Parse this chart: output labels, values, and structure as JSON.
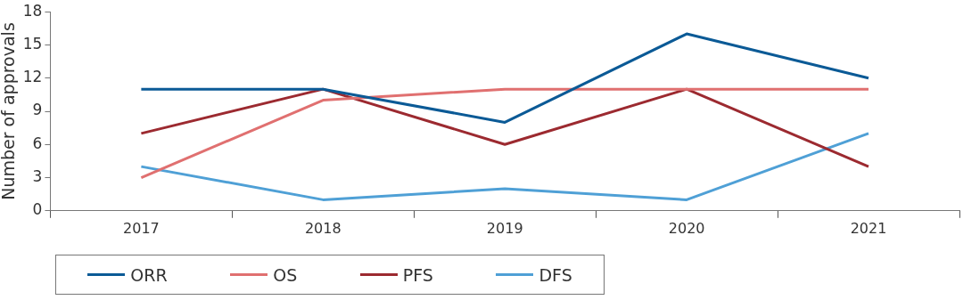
{
  "chart_data": {
    "type": "line",
    "ylabel": "Number of approvals",
    "categories": [
      "2017",
      "2018",
      "2019",
      "2020",
      "2021"
    ],
    "series": [
      {
        "name": "ORR",
        "color": "#0b5a96",
        "values": [
          11,
          11,
          8,
          16,
          12
        ]
      },
      {
        "name": "OS",
        "color": "#e07070",
        "values": [
          3,
          10,
          11,
          11,
          11
        ]
      },
      {
        "name": "PFS",
        "color": "#9c2a30",
        "values": [
          7,
          11,
          6,
          11,
          4
        ]
      },
      {
        "name": "DFS",
        "color": "#4fa0d6",
        "values": [
          4,
          1,
          2,
          1,
          7
        ]
      }
    ],
    "ylim": [
      0,
      18
    ],
    "yticks": [
      0,
      3,
      6,
      9,
      12,
      15,
      18
    ],
    "grid": false,
    "legend": "bottom left",
    "marker": "none",
    "line_style": "solid"
  }
}
